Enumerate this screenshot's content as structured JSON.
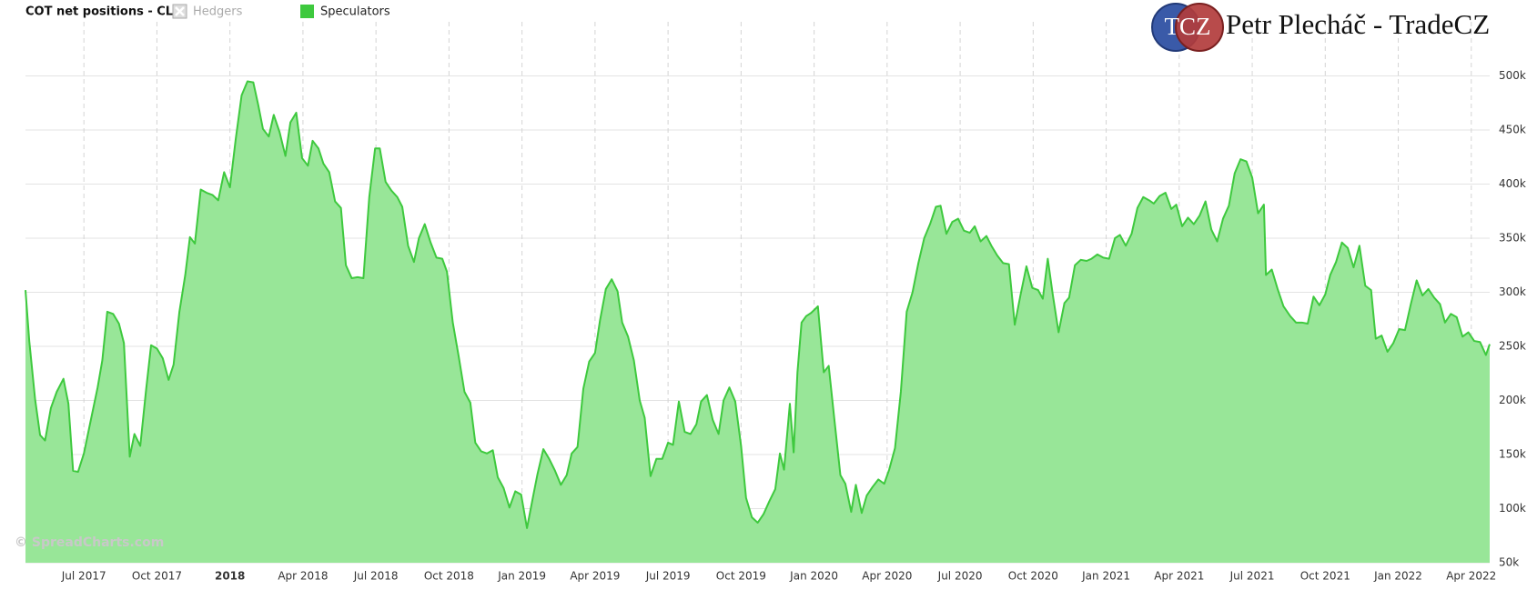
{
  "chart_data": {
    "type": "area",
    "title": "COT net positions - CL:",
    "logo_text": "TCZ",
    "author": "Petr Plecháč - TradeCZ",
    "watermark": "© SpreadCharts.com",
    "grid": true,
    "xlim": [
      2017.3,
      2022.313
    ],
    "ylim": [
      50000,
      550000
    ],
    "xticks": [
      {
        "value": 2017.5,
        "label": "Jul 2017"
      },
      {
        "value": 2017.75,
        "label": "Oct 2017"
      },
      2018,
      {
        "value": 2018.25,
        "label": "Apr 2018"
      },
      {
        "value": 2018.5,
        "label": "Jul 2018"
      },
      {
        "value": 2018.75,
        "label": "Oct 2018"
      },
      {
        "value": 2019,
        "label": "Jan 2019"
      },
      {
        "value": 2019.25,
        "label": "Apr 2019"
      },
      {
        "value": 2019.5,
        "label": "Jul 2019"
      },
      {
        "value": 2019.75,
        "label": "Oct 2019"
      },
      {
        "value": 2020,
        "label": "Jan 2020"
      },
      {
        "value": 2020.25,
        "label": "Apr 2020"
      },
      {
        "value": 2020.5,
        "label": "Jul 2020"
      },
      {
        "value": 2020.75,
        "label": "Oct 2020"
      },
      {
        "value": 2021,
        "label": "Jan 2021"
      },
      {
        "value": 2021.25,
        "label": "Apr 2021"
      },
      {
        "value": 2021.5,
        "label": "Jul 2021"
      },
      {
        "value": 2021.75,
        "label": "Oct 2021"
      },
      {
        "value": 2022,
        "label": "Jan 2022"
      },
      {
        "value": 2022.25,
        "label": "Apr 2022"
      }
    ],
    "yticks": [
      {
        "value": 50000,
        "label": "50k"
      },
      {
        "value": 100000,
        "label": "100k"
      },
      {
        "value": 150000,
        "label": "150k"
      },
      {
        "value": 200000,
        "label": "200k"
      },
      {
        "value": 250000,
        "label": "250k"
      },
      {
        "value": 300000,
        "label": "300k"
      },
      {
        "value": 350000,
        "label": "350k"
      },
      {
        "value": 400000,
        "label": "400k"
      },
      {
        "value": 450000,
        "label": "450k"
      },
      {
        "value": 500000,
        "label": "500k"
      }
    ],
    "x": [
      2017.3,
      2017.313,
      2017.333,
      2017.35,
      2017.367,
      2017.387,
      2017.407,
      2017.43,
      2017.447,
      2017.463,
      2017.48,
      2017.5,
      2017.523,
      2017.547,
      2017.563,
      2017.58,
      2017.6,
      2017.62,
      2017.637,
      2017.657,
      2017.673,
      2017.693,
      2017.713,
      2017.73,
      2017.75,
      2017.77,
      2017.79,
      2017.807,
      2017.827,
      2017.847,
      2017.863,
      2017.88,
      2017.9,
      2017.92,
      2017.94,
      2017.96,
      2017.98,
      2018,
      2018.02,
      2018.04,
      2018.06,
      2018.08,
      2018.097,
      2018.113,
      2018.133,
      2018.15,
      2018.17,
      2018.19,
      2018.207,
      2018.227,
      2018.247,
      2018.267,
      2018.283,
      2018.303,
      2018.32,
      2018.34,
      2018.36,
      2018.38,
      2018.397,
      2018.417,
      2018.437,
      2018.457,
      2018.477,
      2018.497,
      2018.513,
      2018.533,
      2018.553,
      2018.573,
      2018.59,
      2018.61,
      2018.63,
      2018.647,
      2018.667,
      2018.687,
      2018.707,
      2018.727,
      2018.743,
      2018.763,
      2018.783,
      2018.803,
      2018.823,
      2018.84,
      2018.86,
      2018.88,
      2018.9,
      2018.917,
      2018.937,
      2018.957,
      2018.977,
      2018.997,
      2019.017,
      2019.037,
      2019.053,
      2019.073,
      2019.093,
      2019.113,
      2019.133,
      2019.153,
      2019.17,
      2019.19,
      2019.21,
      2019.23,
      2019.25,
      2019.267,
      2019.287,
      2019.307,
      2019.327,
      2019.343,
      2019.363,
      2019.383,
      2019.403,
      2019.42,
      2019.44,
      2019.46,
      2019.48,
      2019.5,
      2019.517,
      2019.537,
      2019.557,
      2019.577,
      2019.597,
      2019.613,
      2019.633,
      2019.653,
      2019.673,
      2019.69,
      2019.71,
      2019.73,
      2019.75,
      2019.767,
      2019.787,
      2019.807,
      2019.827,
      2019.847,
      2019.867,
      2019.883,
      2019.897,
      2019.917,
      2019.93,
      2019.943,
      2019.957,
      2019.973,
      2019.99,
      2020.013,
      2020.033,
      2020.05,
      2020.07,
      2020.09,
      2020.107,
      2020.127,
      2020.143,
      2020.163,
      2020.18,
      2020.2,
      2020.22,
      2020.24,
      2020.257,
      2020.277,
      2020.297,
      2020.317,
      2020.337,
      2020.357,
      2020.377,
      2020.397,
      2020.417,
      2020.433,
      2020.453,
      2020.473,
      2020.493,
      2020.513,
      2020.533,
      2020.55,
      2020.57,
      2020.59,
      2020.607,
      2020.627,
      2020.647,
      2020.667,
      2020.687,
      2020.707,
      2020.727,
      2020.747,
      2020.767,
      2020.783,
      2020.8,
      2020.817,
      2020.837,
      2020.857,
      2020.873,
      2020.893,
      2020.913,
      2020.933,
      2020.95,
      2020.97,
      2020.99,
      2021.01,
      2021.03,
      2021.047,
      2021.067,
      2021.087,
      2021.107,
      2021.127,
      2021.147,
      2021.163,
      2021.183,
      2021.203,
      2021.223,
      2021.24,
      2021.26,
      2021.28,
      2021.3,
      2021.32,
      2021.34,
      2021.36,
      2021.38,
      2021.4,
      2021.42,
      2021.44,
      2021.46,
      2021.48,
      2021.5,
      2021.52,
      2021.54,
      2021.547,
      2021.567,
      2021.587,
      2021.607,
      2021.63,
      2021.65,
      2021.67,
      2021.69,
      2021.71,
      2021.73,
      2021.75,
      2021.767,
      2021.787,
      2021.807,
      2021.827,
      2021.847,
      2021.867,
      2021.887,
      2021.907,
      2021.923,
      2021.943,
      2021.963,
      2021.983,
      2022.003,
      2022.023,
      2022.043,
      2022.063,
      2022.083,
      2022.103,
      2022.123,
      2022.143,
      2022.16,
      2022.18,
      2022.2,
      2022.22,
      2022.24,
      2022.26,
      2022.28,
      2022.3,
      2022.313
    ],
    "series": [
      {
        "name": "Hedgers",
        "color": "#aaaaaa",
        "visible": false
      },
      {
        "name": "Speculators",
        "color": "#3ec93e",
        "fill": "#98e698",
        "visible": true,
        "values": [
          302000,
          255000,
          201000,
          168000,
          163000,
          193000,
          208000,
          220000,
          197000,
          135000,
          134000,
          151000,
          181000,
          212000,
          237000,
          282000,
          280000,
          271000,
          253000,
          148000,
          169000,
          158000,
          210000,
          251000,
          248000,
          239000,
          219000,
          233000,
          282000,
          316000,
          351000,
          345000,
          395000,
          392000,
          390000,
          385000,
          411000,
          397000,
          442000,
          482000,
          495000,
          494000,
          473000,
          451000,
          444000,
          464000,
          448000,
          426000,
          457000,
          466000,
          424000,
          417000,
          440000,
          433000,
          419000,
          411000,
          384000,
          378000,
          325000,
          313000,
          314000,
          313000,
          388000,
          433000,
          433000,
          402000,
          394000,
          388000,
          379000,
          343000,
          328000,
          350000,
          363000,
          346000,
          332000,
          331000,
          319000,
          272000,
          241000,
          208000,
          198000,
          161000,
          153000,
          151000,
          154000,
          129000,
          119000,
          101000,
          116000,
          113000,
          82000,
          110000,
          132000,
          155000,
          146000,
          135000,
          122000,
          131000,
          151000,
          157000,
          211000,
          236000,
          244000,
          274000,
          303000,
          312000,
          301000,
          272000,
          259000,
          237000,
          200000,
          184000,
          130000,
          146000,
          146000,
          161000,
          159000,
          199000,
          171000,
          169000,
          178000,
          199000,
          205000,
          182000,
          169000,
          200000,
          212000,
          199000,
          158000,
          110000,
          92000,
          87000,
          95000,
          107000,
          118000,
          151000,
          136000,
          197000,
          152000,
          226000,
          272000,
          278000,
          281000,
          287000,
          226000,
          232000,
          181000,
          131000,
          123000,
          97000,
          122000,
          96000,
          112000,
          120000,
          127000,
          123000,
          136000,
          156000,
          208000,
          282000,
          300000,
          327000,
          350000,
          363000,
          379000,
          380000,
          354000,
          365000,
          368000,
          357000,
          355000,
          361000,
          347000,
          352000,
          343000,
          334000,
          327000,
          326000,
          270000,
          298000,
          324000,
          304000,
          302000,
          294000,
          331000,
          298000,
          263000,
          290000,
          295000,
          325000,
          330000,
          329000,
          331000,
          335000,
          332000,
          331000,
          350000,
          353000,
          343000,
          354000,
          378000,
          388000,
          385000,
          382000,
          389000,
          392000,
          377000,
          381000,
          361000,
          369000,
          363000,
          371000,
          384000,
          358000,
          347000,
          368000,
          380000,
          410000,
          423000,
          421000,
          406000,
          373000,
          381000,
          316000,
          321000,
          303000,
          287000,
          278000,
          272000,
          272000,
          271000,
          296000,
          288000,
          298000,
          316000,
          328000,
          346000,
          341000,
          323000,
          343000,
          306000,
          302000,
          257000,
          260000,
          245000,
          253000,
          266000,
          265000,
          289000,
          311000,
          297000,
          303000,
          295000,
          289000,
          272000,
          280000,
          277000,
          259000,
          263000,
          255000,
          254000,
          242000,
          252000
        ]
      }
    ]
  }
}
